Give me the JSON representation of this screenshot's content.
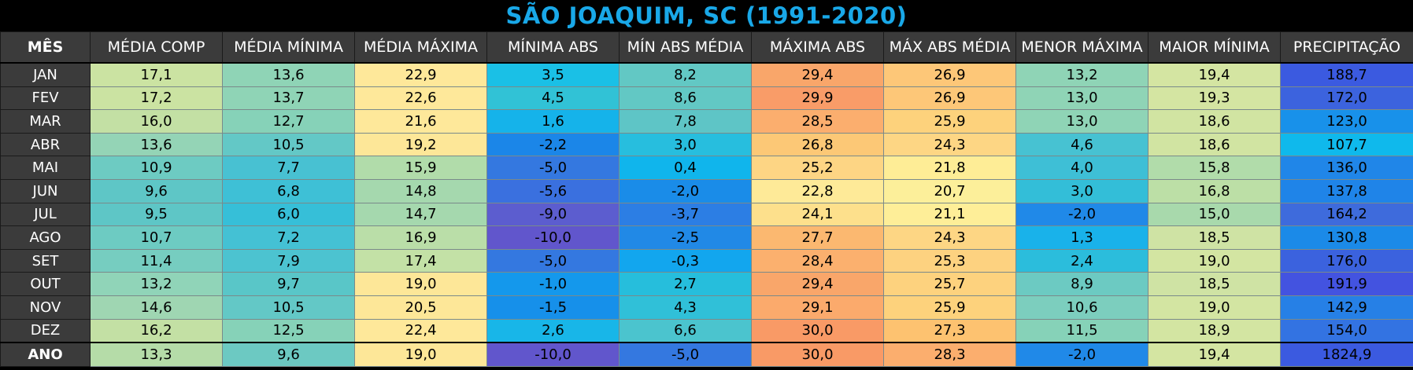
{
  "title": "SÃO JOAQUIM, SC (1991-2020)",
  "chart_data": {
    "type": "table",
    "columns": [
      "MÊS",
      "MÉDIA COMP",
      "MÉDIA MÍNIMA",
      "MÉDIA MÁXIMA",
      "MÍNIMA ABS",
      "MÍN ABS MÉDIA",
      "MÁXIMA ABS",
      "MÁX ABS MÉDIA",
      "MENOR MÁXIMA",
      "MAIOR MÍNIMA",
      "PRECIPITAÇÃO"
    ],
    "rows": [
      {
        "label": "JAN",
        "values": [
          "17,1",
          "13,6",
          "22,9",
          "3,5",
          "8,2",
          "29,4",
          "26,9",
          "13,2",
          "19,4",
          "188,7"
        ],
        "colors": [
          "#cbe3a2",
          "#8fd4b6",
          "#fee89a",
          "#1ac0e6",
          "#62c8c4",
          "#f9a66a",
          "#fdc778",
          "#8fd4b6",
          "#d4e5a2",
          "#3b5ae0"
        ]
      },
      {
        "label": "FEV",
        "values": [
          "17,2",
          "13,7",
          "22,6",
          "4,5",
          "8,6",
          "29,9",
          "26,9",
          "13,0",
          "19,3",
          "172,0"
        ],
        "colors": [
          "#cbe3a2",
          "#8fd4b6",
          "#fee89a",
          "#31c2d6",
          "#62c8c4",
          "#f99c68",
          "#fdc778",
          "#8fd4b6",
          "#d4e5a2",
          "#3c63de"
        ]
      },
      {
        "label": "MAR",
        "values": [
          "16,0",
          "12,7",
          "21,6",
          "1,6",
          "7,8",
          "28,5",
          "25,9",
          "13,0",
          "18,6",
          "123,0"
        ],
        "colors": [
          "#c3e0a4",
          "#86d2b8",
          "#fee89a",
          "#15b3ea",
          "#5ec5c6",
          "#fbae6e",
          "#fdd27c",
          "#8fd4b6",
          "#d1e4a2",
          "#1891ea"
        ]
      },
      {
        "label": "ABR",
        "values": [
          "13,6",
          "10,5",
          "19,2",
          "-2,2",
          "3,0",
          "26,8",
          "24,3",
          "4,6",
          "18,6",
          "107,7"
        ],
        "colors": [
          "#94d4b6",
          "#63c8c6",
          "#fde798",
          "#1b86e8",
          "#27bede",
          "#fcc876",
          "#fdd684",
          "#47c2d2",
          "#d1e4a2",
          "#0fb9ec"
        ]
      },
      {
        "label": "MAI",
        "values": [
          "10,9",
          "7,7",
          "15,9",
          "-5,0",
          "0,4",
          "25,2",
          "21,8",
          "4,0",
          "15,8",
          "136,0"
        ],
        "colors": [
          "#6dcbc2",
          "#48c1d2",
          "#b1dcaa",
          "#3478e0",
          "#10b5ec",
          "#fdd584",
          "#feed96",
          "#3ebfd6",
          "#b1dcaa",
          "#2086e8"
        ]
      },
      {
        "label": "JUN",
        "values": [
          "9,6",
          "6,8",
          "14,8",
          "-5,6",
          "-2,0",
          "22,8",
          "20,7",
          "3,0",
          "16,8",
          "137,8"
        ],
        "colors": [
          "#5ec6c6",
          "#3ec0d6",
          "#a5d8ae",
          "#3a70df",
          "#1a8ce8",
          "#feea98",
          "#fcef9a",
          "#33bed8",
          "#bcdfa6",
          "#1f84e8"
        ]
      },
      {
        "label": "JUL",
        "values": [
          "9,5",
          "6,0",
          "14,7",
          "-9,0",
          "-3,7",
          "24,1",
          "21,1",
          "-2,0",
          "15,0",
          "164,2"
        ],
        "colors": [
          "#5ec6c6",
          "#36bfd8",
          "#a5d8ae",
          "#5c5dcf",
          "#2c7ee4",
          "#fde08c",
          "#feee98",
          "#2089e8",
          "#a8d9ac",
          "#3e6bdc"
        ]
      },
      {
        "label": "AGO",
        "values": [
          "10,7",
          "7,2",
          "16,9",
          "-10,0",
          "-2,5",
          "27,7",
          "24,3",
          "1,3",
          "18,5",
          "130,8"
        ],
        "colors": [
          "#6dcbc2",
          "#44c1d4",
          "#badea8",
          "#6156cc",
          "#2189e6",
          "#fbb870",
          "#fdd684",
          "#19b2ea",
          "#cfe3a4",
          "#1b8ae8"
        ]
      },
      {
        "label": "SET",
        "values": [
          "11,4",
          "7,9",
          "17,4",
          "-5,0",
          "-0,3",
          "28,4",
          "25,3",
          "2,4",
          "19,0",
          "176,0"
        ],
        "colors": [
          "#76cdc0",
          "#4cc3d0",
          "#c3e1a6",
          "#3478e0",
          "#12a6ee",
          "#fbb06e",
          "#fdd280",
          "#2bbddc",
          "#d3e5a2",
          "#3b62de"
        ]
      },
      {
        "label": "OUT",
        "values": [
          "13,2",
          "9,7",
          "19,0",
          "-1,0",
          "2,7",
          "29,4",
          "25,7",
          "8,9",
          "18,5",
          "191,9"
        ],
        "colors": [
          "#90d4b8",
          "#59c6c8",
          "#fde798",
          "#1498ec",
          "#26bedc",
          "#f9a66a",
          "#fdd27e",
          "#6ccac2",
          "#cfe3a4",
          "#4353e0"
        ]
      },
      {
        "label": "NOV",
        "values": [
          "14,6",
          "10,5",
          "20,5",
          "-1,5",
          "4,3",
          "29,1",
          "25,9",
          "10,6",
          "19,0",
          "142,9"
        ],
        "colors": [
          "#9fd6b2",
          "#63c8c6",
          "#fde798",
          "#1690ea",
          "#30c0d8",
          "#fbaa6c",
          "#fdd27c",
          "#7ccebe",
          "#d3e5a2",
          "#2680e6"
        ]
      },
      {
        "label": "DEZ",
        "values": [
          "16,2",
          "12,5",
          "22,4",
          "2,6",
          "6,6",
          "30,0",
          "27,3",
          "11,5",
          "18,9",
          "154,0"
        ],
        "colors": [
          "#c3e0a4",
          "#86d2b8",
          "#fee89a",
          "#18b6e8",
          "#4bc4ce",
          "#f99a66",
          "#fdc270",
          "#86d2b8",
          "#d3e5a2",
          "#3373e2"
        ]
      }
    ],
    "total": {
      "label": "ANO",
      "values": [
        "13,3",
        "9,6",
        "19,0",
        "-10,0",
        "-5,0",
        "30,0",
        "28,3",
        "-2,0",
        "19,4",
        "1824,9"
      ],
      "colors": [
        "#b5dca8",
        "#6cc9c2",
        "#fde798",
        "#6156cc",
        "#3478e0",
        "#f99a66",
        "#fbae6e",
        "#2089e8",
        "#d4e5a2",
        "#3b5ae0"
      ]
    }
  }
}
